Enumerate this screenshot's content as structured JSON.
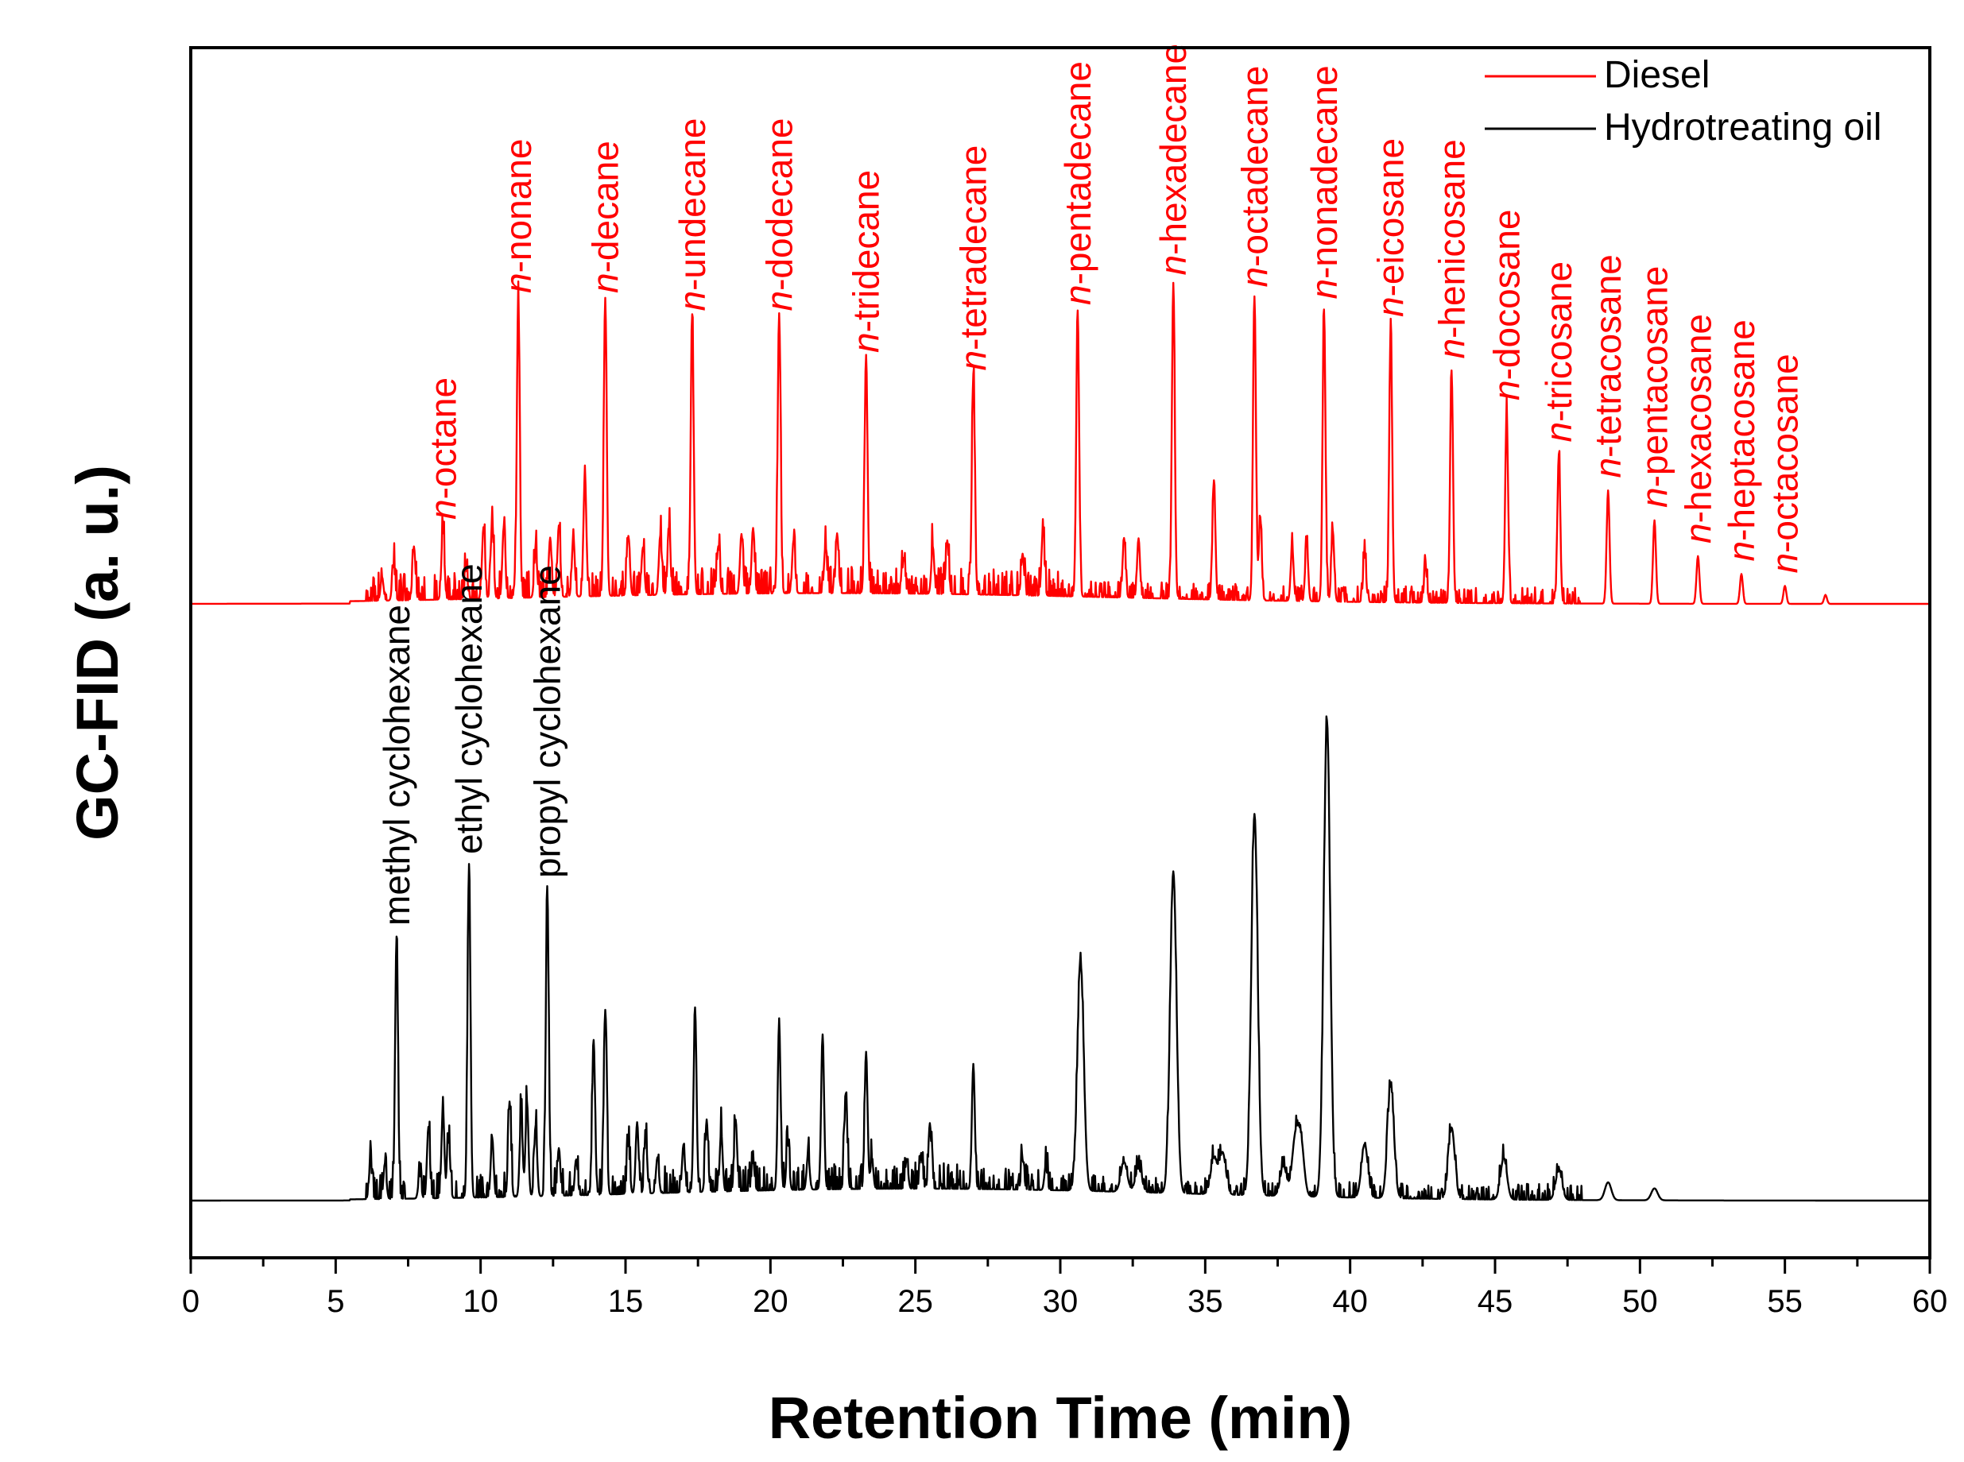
{
  "chart_data": {
    "type": "line",
    "xlabel": "Retention Time (min)",
    "ylabel": "GC-FID (a. u.)",
    "xlim": [
      0,
      60
    ],
    "x_ticks": [
      "0",
      "5",
      "10",
      "15",
      "20",
      "25",
      "30",
      "35",
      "40",
      "45",
      "50",
      "55",
      "60"
    ],
    "legend_position": "top-right",
    "y_tick_labels": "none",
    "series": [
      {
        "name": "Diesel",
        "color": "#ff0000",
        "baseline": 1.0,
        "peaks": [
          [
            6.6,
            0.04
          ],
          [
            7.0,
            0.06
          ],
          [
            7.7,
            0.09
          ],
          [
            8.7,
            0.12
          ],
          [
            9.5,
            0.05
          ],
          [
            10.1,
            0.12
          ],
          [
            10.4,
            0.13
          ],
          [
            10.8,
            0.12
          ],
          [
            11.3,
            0.5
          ],
          [
            11.9,
            0.08
          ],
          [
            12.4,
            0.1
          ],
          [
            12.7,
            0.12
          ],
          [
            13.2,
            0.1
          ],
          [
            13.6,
            0.2
          ],
          [
            14.3,
            0.5
          ],
          [
            15.1,
            0.1
          ],
          [
            15.6,
            0.08
          ],
          [
            16.2,
            0.1
          ],
          [
            16.5,
            0.11
          ],
          [
            17.3,
            0.47
          ],
          [
            18.2,
            0.08
          ],
          [
            19.0,
            0.1
          ],
          [
            19.4,
            0.11
          ],
          [
            20.3,
            0.47
          ],
          [
            20.8,
            0.09
          ],
          [
            21.9,
            0.08
          ],
          [
            22.3,
            0.1
          ],
          [
            23.3,
            0.4
          ],
          [
            24.6,
            0.06
          ],
          [
            25.6,
            0.08
          ],
          [
            26.1,
            0.09
          ],
          [
            27.0,
            0.37
          ],
          [
            28.7,
            0.07
          ],
          [
            29.4,
            0.11
          ],
          [
            30.6,
            0.48
          ],
          [
            32.2,
            0.1
          ],
          [
            32.7,
            0.1
          ],
          [
            33.9,
            0.53
          ],
          [
            35.3,
            0.2
          ],
          [
            36.7,
            0.51
          ],
          [
            36.9,
            0.14
          ],
          [
            38.0,
            0.09
          ],
          [
            38.5,
            0.1
          ],
          [
            39.1,
            0.49
          ],
          [
            39.4,
            0.12
          ],
          [
            40.5,
            0.08
          ],
          [
            41.4,
            0.46
          ],
          [
            42.6,
            0.06
          ],
          [
            43.5,
            0.39
          ],
          [
            45.4,
            0.32
          ],
          [
            47.2,
            0.25
          ],
          [
            48.9,
            0.19
          ],
          [
            50.5,
            0.14
          ],
          [
            52.0,
            0.08
          ],
          [
            53.5,
            0.05
          ],
          [
            55.0,
            0.03
          ],
          [
            56.4,
            0.015
          ]
        ],
        "labels": [
          {
            "x": 8.7,
            "prefix": "n",
            "text": "-octane"
          },
          {
            "x": 11.3,
            "prefix": "n",
            "text": "-nonane"
          },
          {
            "x": 14.3,
            "prefix": "n",
            "text": "-decane"
          },
          {
            "x": 17.3,
            "prefix": "n",
            "text": "-undecane"
          },
          {
            "x": 20.3,
            "prefix": "n",
            "text": "-dodecane"
          },
          {
            "x": 23.3,
            "prefix": "n",
            "text": "-tridecane"
          },
          {
            "x": 27.0,
            "prefix": "n",
            "text": "-tetradecane"
          },
          {
            "x": 30.6,
            "prefix": "n",
            "text": "-pentadecane"
          },
          {
            "x": 33.9,
            "prefix": "n",
            "text": "-hexadecane"
          },
          {
            "x": 36.7,
            "prefix": "n",
            "text": "-octadecane"
          },
          {
            "x": 39.1,
            "prefix": "n",
            "text": "-nonadecane"
          },
          {
            "x": 41.4,
            "prefix": "n",
            "text": "-eicosane"
          },
          {
            "x": 43.5,
            "prefix": "n",
            "text": "-henicosane"
          },
          {
            "x": 45.4,
            "prefix": "n",
            "text": "-docosane"
          },
          {
            "x": 47.2,
            "prefix": "n",
            "text": "-tricosane"
          },
          {
            "x": 48.9,
            "prefix": "n",
            "text": "-tetracosane"
          },
          {
            "x": 50.5,
            "prefix": "n",
            "text": "-pentacosane"
          },
          {
            "x": 52.0,
            "prefix": "n",
            "text": "-hexacosane"
          },
          {
            "x": 53.5,
            "prefix": "n",
            "text": "-heptacosane"
          },
          {
            "x": 55.0,
            "prefix": "n",
            "text": "-octacosane"
          }
        ]
      },
      {
        "name": "Hydrotreating oil",
        "color": "#000000",
        "baseline": 0.0,
        "peaks": [
          [
            6.2,
            0.06
          ],
          [
            6.7,
            0.06
          ],
          [
            7.1,
            0.44
          ],
          [
            7.9,
            0.04
          ],
          [
            8.2,
            0.12
          ],
          [
            8.7,
            0.15
          ],
          [
            8.9,
            0.1
          ],
          [
            9.6,
            0.56
          ],
          [
            10.4,
            0.1
          ],
          [
            11.0,
            0.16
          ],
          [
            11.4,
            0.14
          ],
          [
            11.6,
            0.16
          ],
          [
            11.9,
            0.12
          ],
          [
            12.3,
            0.52
          ],
          [
            12.7,
            0.08
          ],
          [
            13.3,
            0.06
          ],
          [
            13.9,
            0.26
          ],
          [
            14.3,
            0.31
          ],
          [
            15.1,
            0.08
          ],
          [
            15.4,
            0.12
          ],
          [
            15.7,
            0.09
          ],
          [
            16.1,
            0.06
          ],
          [
            17.0,
            0.08
          ],
          [
            17.4,
            0.31
          ],
          [
            17.8,
            0.12
          ],
          [
            18.3,
            0.1
          ],
          [
            18.8,
            0.12
          ],
          [
            19.4,
            0.05
          ],
          [
            20.3,
            0.28
          ],
          [
            20.6,
            0.08
          ],
          [
            21.3,
            0.06
          ],
          [
            21.8,
            0.26
          ],
          [
            22.6,
            0.16
          ],
          [
            23.3,
            0.23
          ],
          [
            23.5,
            0.05
          ],
          [
            24.7,
            0.05
          ],
          [
            25.2,
            0.06
          ],
          [
            25.5,
            0.11
          ],
          [
            27.0,
            0.21
          ],
          [
            28.7,
            0.05
          ],
          [
            29.5,
            0.04
          ],
          [
            30.7,
            0.38
          ],
          [
            32.2,
            0.05
          ],
          [
            32.7,
            0.04
          ],
          [
            33.9,
            0.54
          ],
          [
            35.3,
            0.06
          ],
          [
            35.6,
            0.07
          ],
          [
            36.7,
            0.64
          ],
          [
            37.7,
            0.05
          ],
          [
            38.1,
            0.09
          ],
          [
            38.3,
            0.09
          ],
          [
            39.2,
            0.8
          ],
          [
            40.5,
            0.09
          ],
          [
            41.4,
            0.19
          ],
          [
            43.5,
            0.12
          ],
          [
            45.3,
            0.07
          ],
          [
            47.2,
            0.05
          ],
          [
            48.9,
            0.03
          ],
          [
            50.5,
            0.02
          ]
        ],
        "labels": [
          {
            "x": 7.1,
            "text": "methyl cyclohexane"
          },
          {
            "x": 9.6,
            "text": "ethyl cyclohexane"
          },
          {
            "x": 12.3,
            "text": "propyl cyclohexane"
          }
        ]
      }
    ]
  }
}
